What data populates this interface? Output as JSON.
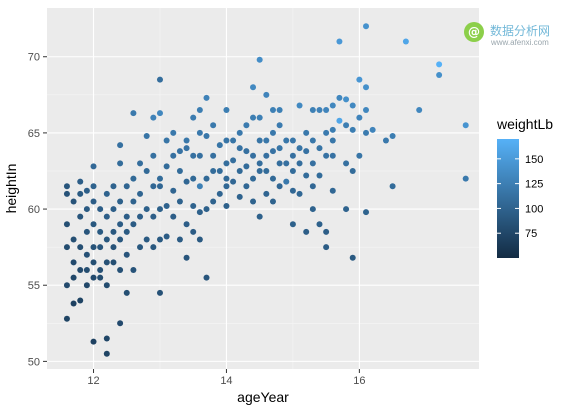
{
  "chart_data": {
    "type": "scatter",
    "title": "",
    "xlabel": "ageYear",
    "ylabel": "heightIn",
    "xlim": [
      11.3,
      17.8
    ],
    "ylim": [
      49.5,
      73.2
    ],
    "x_ticks": [
      12,
      14,
      16
    ],
    "y_ticks": [
      50,
      55,
      60,
      65,
      70
    ],
    "x_tick_labels": [
      "12",
      "14",
      "16"
    ],
    "y_tick_labels": [
      "50",
      "55",
      "60",
      "65",
      "70"
    ],
    "grid": true,
    "background": "#ebebeb",
    "color_scale": {
      "name": "weightLb",
      "low_color": "#132b43",
      "high_color": "#56b1f7",
      "range": [
        50,
        170
      ],
      "breaks": [
        75,
        100,
        125,
        150
      ],
      "break_labels": [
        "75",
        "100",
        "125",
        "150"
      ],
      "legend_position": "right"
    },
    "points": [
      [
        11.6,
        52.8,
        72
      ],
      [
        11.6,
        55.0,
        78
      ],
      [
        11.6,
        57.5,
        80
      ],
      [
        11.6,
        59.0,
        82
      ],
      [
        11.6,
        61.0,
        85
      ],
      [
        11.6,
        61.5,
        88
      ],
      [
        11.7,
        53.8,
        70
      ],
      [
        11.7,
        55.5,
        75
      ],
      [
        11.7,
        56.5,
        78
      ],
      [
        11.7,
        58.0,
        82
      ],
      [
        11.7,
        60.5,
        86
      ],
      [
        11.8,
        54.0,
        72
      ],
      [
        11.8,
        56.0,
        78
      ],
      [
        11.8,
        57.5,
        82
      ],
      [
        11.8,
        59.5,
        88
      ],
      [
        11.8,
        61.0,
        92
      ],
      [
        11.8,
        61.8,
        95
      ],
      [
        11.9,
        55.0,
        76
      ],
      [
        11.9,
        56.0,
        80
      ],
      [
        11.9,
        57.0,
        84
      ],
      [
        11.9,
        58.5,
        88
      ],
      [
        11.9,
        60.0,
        92
      ],
      [
        11.9,
        61.2,
        96
      ],
      [
        12.0,
        51.3,
        70
      ],
      [
        12.0,
        55.5,
        78
      ],
      [
        12.0,
        56.5,
        82
      ],
      [
        12.0,
        57.5,
        86
      ],
      [
        12.0,
        59.0,
        90
      ],
      [
        12.0,
        60.5,
        96
      ],
      [
        12.0,
        61.5,
        100
      ],
      [
        12.0,
        62.8,
        105
      ],
      [
        12.1,
        55.5,
        80
      ],
      [
        12.1,
        56.0,
        84
      ],
      [
        12.1,
        57.5,
        88
      ],
      [
        12.1,
        58.5,
        92
      ],
      [
        12.1,
        60.0,
        96
      ],
      [
        12.2,
        50.5,
        72
      ],
      [
        12.2,
        51.5,
        74
      ],
      [
        12.2,
        55.0,
        80
      ],
      [
        12.2,
        56.5,
        84
      ],
      [
        12.2,
        58.0,
        90
      ],
      [
        12.2,
        59.5,
        96
      ],
      [
        12.2,
        61.0,
        100
      ],
      [
        12.3,
        56.5,
        82
      ],
      [
        12.3,
        57.5,
        86
      ],
      [
        12.3,
        58.5,
        90
      ],
      [
        12.3,
        60.0,
        96
      ],
      [
        12.3,
        61.5,
        100
      ],
      [
        12.4,
        52.5,
        78
      ],
      [
        12.4,
        56.0,
        84
      ],
      [
        12.4,
        58.0,
        90
      ],
      [
        12.4,
        59.0,
        94
      ],
      [
        12.4,
        60.5,
        98
      ],
      [
        12.4,
        63.0,
        108
      ],
      [
        12.4,
        64.2,
        112
      ],
      [
        12.5,
        54.5,
        82
      ],
      [
        12.5,
        57.0,
        88
      ],
      [
        12.5,
        58.5,
        92
      ],
      [
        12.5,
        59.5,
        96
      ],
      [
        12.5,
        61.5,
        102
      ],
      [
        12.6,
        56.0,
        86
      ],
      [
        12.6,
        59.0,
        94
      ],
      [
        12.6,
        60.5,
        100
      ],
      [
        12.6,
        62.0,
        106
      ],
      [
        12.6,
        66.3,
        120
      ],
      [
        12.7,
        57.5,
        90
      ],
      [
        12.7,
        59.5,
        96
      ],
      [
        12.7,
        61.0,
        102
      ],
      [
        12.7,
        63.0,
        110
      ],
      [
        12.8,
        58.0,
        92
      ],
      [
        12.8,
        60.0,
        98
      ],
      [
        12.8,
        62.5,
        106
      ],
      [
        12.8,
        64.8,
        116
      ],
      [
        12.9,
        57.5,
        90
      ],
      [
        12.9,
        59.5,
        96
      ],
      [
        12.9,
        61.5,
        104
      ],
      [
        12.9,
        63.5,
        112
      ],
      [
        12.9,
        66.0,
        128
      ],
      [
        13.0,
        54.5,
        84
      ],
      [
        13.0,
        58.0,
        92
      ],
      [
        13.0,
        60.0,
        98
      ],
      [
        13.0,
        61.5,
        104
      ],
      [
        13.0,
        62.0,
        108
      ],
      [
        13.0,
        66.3,
        132
      ],
      [
        13.0,
        68.5,
        110
      ],
      [
        13.1,
        58.2,
        94
      ],
      [
        13.1,
        60.2,
        100
      ],
      [
        13.1,
        62.8,
        108
      ],
      [
        13.1,
        64.5,
        116
      ],
      [
        13.2,
        59.5,
        96
      ],
      [
        13.2,
        61.2,
        102
      ],
      [
        13.2,
        63.5,
        112
      ],
      [
        13.2,
        65.0,
        120
      ],
      [
        13.3,
        58.0,
        94
      ],
      [
        13.3,
        60.5,
        100
      ],
      [
        13.3,
        62.5,
        108
      ],
      [
        13.3,
        63.8,
        114
      ],
      [
        13.4,
        56.8,
        88
      ],
      [
        13.4,
        59.0,
        96
      ],
      [
        13.4,
        61.8,
        104
      ],
      [
        13.4,
        64.0,
        114
      ],
      [
        13.4,
        64.5,
        118
      ],
      [
        13.5,
        58.5,
        94
      ],
      [
        13.5,
        60.2,
        100
      ],
      [
        13.5,
        62.0,
        106
      ],
      [
        13.5,
        63.5,
        112
      ],
      [
        13.5,
        66.0,
        122
      ],
      [
        13.6,
        58.0,
        92
      ],
      [
        13.6,
        59.8,
        98
      ],
      [
        13.6,
        61.5,
        126
      ],
      [
        13.6,
        63.5,
        112
      ],
      [
        13.6,
        65.0,
        120
      ],
      [
        13.6,
        66.5,
        124
      ],
      [
        13.7,
        55.5,
        88
      ],
      [
        13.7,
        60.0,
        98
      ],
      [
        13.7,
        62.0,
        106
      ],
      [
        13.7,
        64.8,
        118
      ],
      [
        13.7,
        67.3,
        128
      ],
      [
        13.8,
        60.5,
        100
      ],
      [
        13.8,
        62.5,
        108
      ],
      [
        13.8,
        63.5,
        112
      ],
      [
        13.8,
        65.5,
        120
      ],
      [
        13.9,
        61.0,
        102
      ],
      [
        13.9,
        62.5,
        108
      ],
      [
        13.9,
        64.2,
        116
      ],
      [
        14.0,
        60.2,
        98
      ],
      [
        14.0,
        61.5,
        104
      ],
      [
        14.0,
        62.0,
        106
      ],
      [
        14.0,
        63.0,
        110
      ],
      [
        14.0,
        64.5,
        116
      ],
      [
        14.0,
        66.5,
        124
      ],
      [
        14.1,
        61.8,
        104
      ],
      [
        14.1,
        63.2,
        110
      ],
      [
        14.1,
        64.5,
        116
      ],
      [
        14.2,
        60.8,
        100
      ],
      [
        14.2,
        62.5,
        106
      ],
      [
        14.2,
        64.0,
        114
      ],
      [
        14.2,
        65.0,
        120
      ],
      [
        14.3,
        61.5,
        104
      ],
      [
        14.3,
        62.8,
        108
      ],
      [
        14.3,
        63.8,
        112
      ],
      [
        14.3,
        65.5,
        122
      ],
      [
        14.4,
        60.5,
        100
      ],
      [
        14.4,
        62.0,
        106
      ],
      [
        14.4,
        63.5,
        112
      ],
      [
        14.4,
        66.0,
        124
      ],
      [
        14.4,
        68.0,
        134
      ],
      [
        14.5,
        59.5,
        98
      ],
      [
        14.5,
        62.5,
        108
      ],
      [
        14.5,
        63.0,
        110
      ],
      [
        14.5,
        64.5,
        116
      ],
      [
        14.5,
        66.0,
        126
      ],
      [
        14.5,
        69.8,
        138
      ],
      [
        14.6,
        61.0,
        102
      ],
      [
        14.6,
        62.5,
        108
      ],
      [
        14.6,
        63.5,
        112
      ],
      [
        14.6,
        64.5,
        118
      ],
      [
        14.6,
        67.5,
        130
      ],
      [
        14.7,
        60.5,
        100
      ],
      [
        14.7,
        62.0,
        106
      ],
      [
        14.7,
        63.8,
        114
      ],
      [
        14.7,
        65.0,
        120
      ],
      [
        14.7,
        66.5,
        126
      ],
      [
        14.8,
        61.5,
        104
      ],
      [
        14.8,
        63.0,
        110
      ],
      [
        14.8,
        64.0,
        116
      ],
      [
        14.8,
        65.5,
        122
      ],
      [
        14.8,
        66.5,
        126
      ],
      [
        14.9,
        61.8,
        120
      ],
      [
        14.9,
        63.0,
        112
      ],
      [
        14.9,
        64.5,
        118
      ],
      [
        15.0,
        59.0,
        98
      ],
      [
        15.0,
        61.2,
        104
      ],
      [
        15.0,
        62.5,
        108
      ],
      [
        15.0,
        63.5,
        112
      ],
      [
        15.0,
        64.5,
        118
      ],
      [
        15.1,
        61.0,
        104
      ],
      [
        15.1,
        63.0,
        110
      ],
      [
        15.1,
        64.0,
        116
      ],
      [
        15.1,
        66.8,
        134
      ],
      [
        15.2,
        58.5,
        96
      ],
      [
        15.2,
        62.2,
        108
      ],
      [
        15.2,
        63.8,
        114
      ],
      [
        15.2,
        65.0,
        120
      ],
      [
        15.3,
        60.0,
        100
      ],
      [
        15.3,
        61.5,
        104
      ],
      [
        15.3,
        63.0,
        112
      ],
      [
        15.3,
        64.5,
        118
      ],
      [
        15.3,
        66.5,
        126
      ],
      [
        15.4,
        59.0,
        98
      ],
      [
        15.4,
        62.2,
        108
      ],
      [
        15.4,
        64.0,
        116
      ],
      [
        15.4,
        66.5,
        128
      ],
      [
        15.5,
        57.5,
        94
      ],
      [
        15.5,
        58.5,
        96
      ],
      [
        15.5,
        63.5,
        114
      ],
      [
        15.5,
        65.0,
        122
      ],
      [
        15.5,
        66.5,
        130
      ],
      [
        15.6,
        61.2,
        104
      ],
      [
        15.6,
        63.5,
        114
      ],
      [
        15.6,
        64.5,
        118
      ],
      [
        15.6,
        65.2,
        124
      ],
      [
        15.6,
        66.8,
        132
      ],
      [
        15.7,
        65.8,
        160
      ],
      [
        15.7,
        67.3,
        132
      ],
      [
        15.7,
        71.0,
        148
      ],
      [
        15.8,
        60.0,
        100
      ],
      [
        15.8,
        63.0,
        112
      ],
      [
        15.8,
        65.5,
        124
      ],
      [
        15.8,
        67.2,
        140
      ],
      [
        15.9,
        56.8,
        92
      ],
      [
        15.9,
        62.5,
        108
      ],
      [
        15.9,
        65.2,
        124
      ],
      [
        15.9,
        66.8,
        134
      ],
      [
        16.0,
        63.5,
        116
      ],
      [
        16.0,
        66.0,
        130
      ],
      [
        16.0,
        68.5,
        146
      ],
      [
        16.1,
        59.8,
        100
      ],
      [
        16.1,
        65.0,
        122
      ],
      [
        16.1,
        66.5,
        132
      ],
      [
        16.1,
        68.0,
        140
      ],
      [
        16.1,
        72.0,
        142
      ],
      [
        16.2,
        65.2,
        130
      ],
      [
        16.4,
        64.5,
        120
      ],
      [
        16.5,
        61.5,
        108
      ],
      [
        16.5,
        64.8,
        124
      ],
      [
        16.7,
        71.0,
        160
      ],
      [
        16.9,
        66.5,
        132
      ],
      [
        17.2,
        68.8,
        140
      ],
      [
        17.2,
        69.5,
        172
      ],
      [
        17.6,
        62.0,
        120
      ],
      [
        17.6,
        65.5,
        144
      ]
    ]
  },
  "watermark": {
    "circle_text": "@",
    "name": "数据分析网",
    "url": "www.afenxi.com"
  }
}
